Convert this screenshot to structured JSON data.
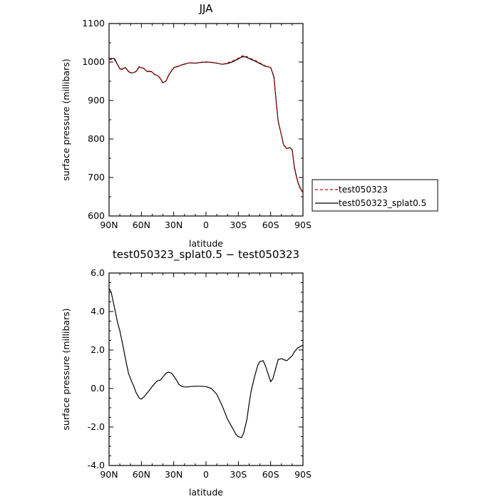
{
  "chart_data": [
    {
      "type": "line",
      "title": "JJA",
      "xlabel": "latitude",
      "ylabel": "surface pressure (millibars)",
      "xlim": [
        90,
        -90
      ],
      "ylim": [
        600,
        1100
      ],
      "xticks": [
        90,
        60,
        30,
        0,
        -30,
        -60,
        -90
      ],
      "xtick_labels": [
        "90N",
        "60N",
        "30N",
        "0",
        "30S",
        "60S",
        "90S"
      ],
      "yticks": [
        600,
        700,
        800,
        900,
        1000,
        1100
      ],
      "ytick_labels": [
        "600",
        "700",
        "800",
        "900",
        "1000",
        "1100"
      ],
      "grid": false,
      "legend_position": "right",
      "x": [
        90,
        85,
        80,
        78,
        75,
        72,
        70,
        68,
        65,
        62,
        60,
        58,
        55,
        52,
        50,
        48,
        45,
        42,
        40,
        37,
        35,
        32,
        30,
        27,
        25,
        20,
        15,
        10,
        5,
        0,
        -5,
        -10,
        -15,
        -20,
        -25,
        -30,
        -33,
        -35,
        -38,
        -40,
        -45,
        -50,
        -55,
        -60,
        -63,
        -65,
        -67,
        -70,
        -72,
        -75,
        -78,
        -80,
        -82,
        -84,
        -86,
        -88,
        -90
      ],
      "series": [
        {
          "name": "test050323",
          "color": "#cc0000",
          "dash": "dashed",
          "values": [
            1007,
            1006,
            983,
            982,
            985,
            975,
            972,
            972,
            975,
            987,
            985,
            984,
            975,
            975,
            974,
            967,
            965,
            955,
            946,
            952,
            965,
            978,
            986,
            988,
            990,
            994,
            998,
            997,
            999,
            1000,
            999,
            997,
            994,
            998,
            1003,
            1010,
            1015,
            1017,
            1014,
            1011,
            1005,
            998,
            990,
            986,
            960,
            900,
            845,
            810,
            785,
            775,
            778,
            770,
            725,
            700,
            680,
            668,
            660
          ]
        },
        {
          "name": "test050323_splat0.5",
          "color": "#000000",
          "dash": "solid",
          "values": [
            1009,
            1009,
            982,
            981,
            986,
            976,
            972,
            972,
            975,
            988,
            985,
            984,
            976,
            976,
            974,
            968,
            965,
            956,
            946,
            951,
            964,
            977,
            985,
            988,
            990,
            995,
            998,
            997,
            999,
            1000,
            999,
            997,
            994,
            996,
            1001,
            1008,
            1013,
            1014,
            1012,
            1009,
            1003,
            996,
            989,
            986,
            962,
            903,
            847,
            810,
            785,
            775,
            778,
            772,
            728,
            702,
            682,
            670,
            660
          ]
        }
      ]
    },
    {
      "type": "line",
      "title": "test050323_splat0.5 − test050323",
      "xlabel": "latitude",
      "ylabel": "surface pressure (millibars)",
      "xlim": [
        90,
        -90
      ],
      "ylim": [
        -4,
        6
      ],
      "xticks": [
        90,
        60,
        30,
        0,
        -30,
        -60,
        -90
      ],
      "xtick_labels": [
        "90N",
        "60N",
        "30N",
        "0",
        "30S",
        "60S",
        "90S"
      ],
      "yticks": [
        -4,
        -2,
        0,
        2,
        4,
        6
      ],
      "ytick_labels": [
        "-4.0",
        "-2.0",
        "0.0",
        "2.0",
        "4.0",
        "6.0"
      ],
      "grid": false,
      "series": [
        {
          "color": "#000000",
          "dash": "solid",
          "x": [
            90,
            88,
            85,
            82,
            80,
            77,
            75,
            72,
            70,
            67,
            65,
            62,
            60,
            57,
            55,
            52,
            50,
            47,
            45,
            42,
            40,
            37,
            35,
            32,
            30,
            27,
            25,
            22,
            20,
            17,
            15,
            10,
            5,
            0,
            -5,
            -10,
            -15,
            -20,
            -25,
            -28,
            -30,
            -33,
            -35,
            -38,
            -40,
            -42,
            -45,
            -48,
            -50,
            -53,
            -55,
            -58,
            -60,
            -62,
            -65,
            -67,
            -70,
            -72,
            -75,
            -78,
            -80,
            -82,
            -85,
            -88,
            -90
          ],
          "values": [
            5.2,
            5.0,
            4.2,
            3.4,
            3.0,
            2.2,
            1.6,
            0.8,
            0.5,
            0.1,
            -0.2,
            -0.5,
            -0.55,
            -0.4,
            -0.25,
            -0.05,
            0.1,
            0.3,
            0.4,
            0.45,
            0.6,
            0.8,
            0.85,
            0.8,
            0.65,
            0.4,
            0.2,
            0.1,
            0.08,
            0.08,
            0.1,
            0.12,
            0.12,
            0.1,
            0.0,
            -0.3,
            -0.9,
            -1.6,
            -2.1,
            -2.4,
            -2.5,
            -2.55,
            -2.3,
            -1.6,
            -0.8,
            -0.1,
            0.6,
            1.2,
            1.4,
            1.45,
            1.2,
            0.7,
            0.35,
            0.5,
            1.1,
            1.5,
            1.55,
            1.5,
            1.45,
            1.6,
            1.7,
            1.9,
            2.1,
            2.2,
            2.25
          ]
        }
      ]
    }
  ]
}
